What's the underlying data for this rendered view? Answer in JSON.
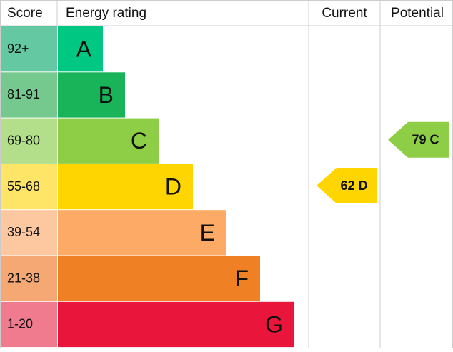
{
  "chart_data": {
    "type": "epc",
    "columns": [
      "Score",
      "Energy rating",
      "Current",
      "Potential"
    ],
    "bands": [
      {
        "score": "92+",
        "letter": "A",
        "color": "#00c781",
        "score_color": "#64c9a2"
      },
      {
        "score": "81-91",
        "letter": "B",
        "color": "#19b459",
        "score_color": "#75c98f"
      },
      {
        "score": "69-80",
        "letter": "C",
        "color": "#8dce46",
        "score_color": "#b3df8b"
      },
      {
        "score": "55-68",
        "letter": "D",
        "color": "#ffd500",
        "score_color": "#ffe567"
      },
      {
        "score": "39-54",
        "letter": "E",
        "color": "#fcaa65",
        "score_color": "#fdc8a0"
      },
      {
        "score": "21-38",
        "letter": "F",
        "color": "#ef8023",
        "score_color": "#f5a874"
      },
      {
        "score": "1-20",
        "letter": "G",
        "color": "#e9153b",
        "score_color": "#f17b8e"
      }
    ],
    "current": {
      "value": 62,
      "value_label": "62 D",
      "color": "#ffd500"
    },
    "potential": {
      "value": 79,
      "value_label": "79 C",
      "color": "#8dce46"
    }
  }
}
